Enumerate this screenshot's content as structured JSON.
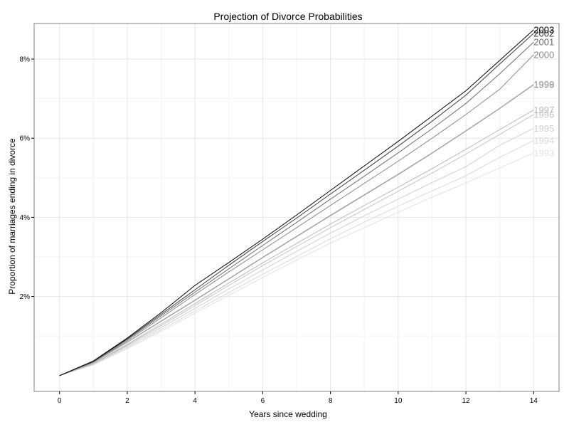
{
  "chart_data": {
    "type": "line",
    "title": "Projection of Divorce Probabilities",
    "xlabel": "Years since wedding",
    "ylabel": "Proportion of marriages ending in divorce",
    "xlim": [
      -0.75,
      14.75
    ],
    "ylim": [
      -0.004,
      0.089
    ],
    "grid": true,
    "legend": "direct labels at line ends",
    "x": [
      0,
      1,
      2,
      3,
      4,
      5,
      6,
      7,
      8,
      9,
      10,
      11,
      12,
      13,
      14
    ],
    "x_ticks": [
      0,
      2,
      4,
      6,
      8,
      10,
      12,
      14
    ],
    "x_tick_labels": [
      "0",
      "2",
      "4",
      "6",
      "8",
      "10",
      "12",
      "14"
    ],
    "y_ticks": [
      0.02,
      0.04,
      0.06,
      0.08
    ],
    "y_tick_labels": [
      "2%",
      "4%",
      "6%",
      "8%"
    ],
    "series": [
      {
        "name": "1993",
        "color": "#e2e2e2",
        "values": [
          0.0,
          0.0027,
          0.0068,
          0.0112,
          0.0158,
          0.0203,
          0.0248,
          0.0292,
          0.0335,
          0.0374,
          0.0413,
          0.0451,
          0.0487,
          0.0525,
          0.0563
        ]
      },
      {
        "name": "1994",
        "color": "#dadada",
        "values": [
          0.0,
          0.0028,
          0.0071,
          0.0116,
          0.0163,
          0.021,
          0.0256,
          0.0301,
          0.0346,
          0.0388,
          0.0428,
          0.0467,
          0.0505,
          0.0552,
          0.0594
        ]
      },
      {
        "name": "1995",
        "color": "#d0d0d0",
        "values": [
          0.0,
          0.0029,
          0.0074,
          0.0121,
          0.017,
          0.0219,
          0.0267,
          0.0314,
          0.036,
          0.0404,
          0.0446,
          0.0488,
          0.0528,
          0.0582,
          0.0625
        ]
      },
      {
        "name": "1996",
        "color": "#c4c4c4",
        "values": [
          0.0,
          0.003,
          0.0077,
          0.0126,
          0.0177,
          0.0228,
          0.0278,
          0.0326,
          0.0374,
          0.042,
          0.0466,
          0.0512,
          0.056,
          0.061,
          0.066
        ]
      },
      {
        "name": "1997",
        "color": "#bababa",
        "values": [
          0.0,
          0.0031,
          0.0079,
          0.013,
          0.0182,
          0.0234,
          0.0285,
          0.0334,
          0.0383,
          0.043,
          0.0476,
          0.0523,
          0.0572,
          0.0622,
          0.0671
        ]
      },
      {
        "name": "1998",
        "color": "#a5a5a5",
        "values": [
          0.0,
          0.0033,
          0.0084,
          0.0137,
          0.019,
          0.0244,
          0.0298,
          0.0351,
          0.0404,
          0.0456,
          0.0508,
          0.0562,
          0.0618,
          0.0675,
          0.0735
        ]
      },
      {
        "name": "1999",
        "color": "#9e9e9e",
        "values": [
          0.0,
          0.0034,
          0.0085,
          0.0138,
          0.0191,
          0.0245,
          0.0299,
          0.0352,
          0.0405,
          0.0457,
          0.0509,
          0.0563,
          0.0619,
          0.0676,
          0.0736
        ]
      },
      {
        "name": "2000",
        "color": "#8a8a8a",
        "values": [
          0.0,
          0.0034,
          0.0088,
          0.0146,
          0.0205,
          0.0262,
          0.0318,
          0.0374,
          0.043,
          0.0486,
          0.0542,
          0.06,
          0.066,
          0.0724,
          0.0811
        ]
      },
      {
        "name": "2001",
        "color": "#6e6e6e",
        "values": [
          0.0,
          0.0035,
          0.0091,
          0.0151,
          0.0211,
          0.027,
          0.0329,
          0.0387,
          0.0446,
          0.0504,
          0.0563,
          0.0624,
          0.0688,
          0.0763,
          0.0843
        ]
      },
      {
        "name": "2002",
        "color": "#3a3a3a",
        "values": [
          0.0,
          0.0036,
          0.0093,
          0.0155,
          0.0217,
          0.0279,
          0.0339,
          0.0398,
          0.0459,
          0.0519,
          0.058,
          0.0643,
          0.0709,
          0.0788,
          0.0865
        ]
      },
      {
        "name": "2003",
        "color": "#000000",
        "values": [
          0.0,
          0.0037,
          0.0095,
          0.0159,
          0.0228,
          0.0286,
          0.0345,
          0.0406,
          0.0468,
          0.053,
          0.0592,
          0.0656,
          0.072,
          0.0797,
          0.0874
        ]
      }
    ]
  }
}
